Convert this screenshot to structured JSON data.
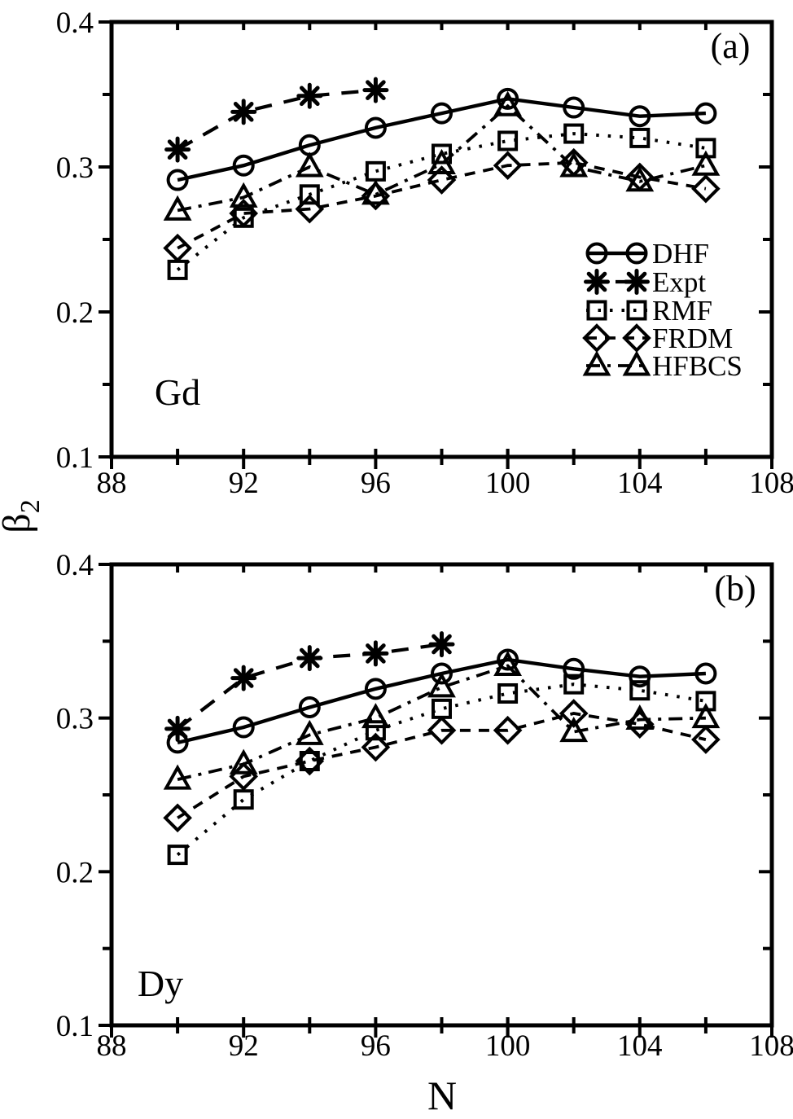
{
  "figure": {
    "background": "#ffffff",
    "foreground": "#000000",
    "x_axis_label": "N",
    "y_axis_label": "β",
    "y_axis_label_subscript": "2"
  },
  "legend": {
    "position": "center-right-of-top-panel",
    "entries": [
      "DHF",
      "Expt",
      "RMF",
      "FRDM",
      "HFBCS"
    ]
  },
  "chart_data": [
    {
      "type": "line",
      "panel_label": "(a)",
      "element_label": "Gd",
      "xlim": [
        88,
        108
      ],
      "ylim": [
        0.1,
        0.4
      ],
      "xticks_major": [
        88,
        92,
        96,
        100,
        104,
        108
      ],
      "xticks_minor": [
        90,
        94,
        98,
        100,
        102,
        106
      ],
      "xtick_labels": [
        "88",
        "92",
        "96",
        "100",
        "104",
        "108"
      ],
      "yticks_major": [
        0.1,
        0.2,
        0.3,
        0.4
      ],
      "yticks_minor": [
        0.15,
        0.25,
        0.35
      ],
      "ytick_labels": [
        "0.1",
        "0.2",
        "0.3",
        "0.4"
      ],
      "grid": false,
      "legend_visible": true,
      "series": [
        {
          "name": "DHF",
          "marker": "circle",
          "line_style": "solid",
          "x": [
            90,
            92,
            94,
            96,
            98,
            100,
            102,
            104,
            106
          ],
          "y": [
            0.291,
            0.301,
            0.315,
            0.327,
            0.337,
            0.347,
            0.341,
            0.335,
            0.337
          ]
        },
        {
          "name": "Expt",
          "marker": "asterisk",
          "line_style": "long-dash",
          "x": [
            90,
            92,
            94,
            96
          ],
          "y": [
            0.312,
            0.338,
            0.349,
            0.353
          ]
        },
        {
          "name": "RMF",
          "marker": "square",
          "line_style": "dotted",
          "x": [
            90,
            92,
            94,
            96,
            98,
            100,
            102,
            104,
            106
          ],
          "y": [
            0.229,
            0.265,
            0.281,
            0.297,
            0.309,
            0.318,
            0.323,
            0.32,
            0.313
          ]
        },
        {
          "name": "FRDM",
          "marker": "diamond",
          "line_style": "dash",
          "x": [
            90,
            92,
            94,
            96,
            98,
            100,
            102,
            104,
            106
          ],
          "y": [
            0.244,
            0.268,
            0.271,
            0.28,
            0.291,
            0.301,
            0.303,
            0.293,
            0.285
          ]
        },
        {
          "name": "HFBCS",
          "marker": "triangle",
          "line_style": "dash-dot",
          "x": [
            90,
            92,
            94,
            96,
            98,
            100,
            102,
            104,
            106
          ],
          "y": [
            0.27,
            0.279,
            0.3,
            0.281,
            0.302,
            0.342,
            0.3,
            0.29,
            0.301
          ]
        }
      ]
    },
    {
      "type": "line",
      "panel_label": "(b)",
      "element_label": "Dy",
      "xlim": [
        88,
        108
      ],
      "ylim": [
        0.1,
        0.4
      ],
      "xticks_major": [
        88,
        92,
        96,
        100,
        104,
        108
      ],
      "xticks_minor": [
        90,
        94,
        98,
        100,
        102,
        106
      ],
      "xtick_labels": [
        "88",
        "92",
        "96",
        "100",
        "104",
        "108"
      ],
      "yticks_major": [
        0.1,
        0.2,
        0.3,
        0.4
      ],
      "yticks_minor": [
        0.15,
        0.25,
        0.35
      ],
      "ytick_labels": [
        "0.1",
        "0.2",
        "0.3",
        "0.4"
      ],
      "grid": false,
      "legend_visible": false,
      "series": [
        {
          "name": "DHF",
          "marker": "circle",
          "line_style": "solid",
          "x": [
            90,
            92,
            94,
            96,
            98,
            100,
            102,
            104,
            106
          ],
          "y": [
            0.284,
            0.294,
            0.307,
            0.319,
            0.329,
            0.338,
            0.332,
            0.327,
            0.329
          ]
        },
        {
          "name": "Expt",
          "marker": "asterisk",
          "line_style": "long-dash",
          "x": [
            90,
            92,
            94,
            96,
            98
          ],
          "y": [
            0.293,
            0.326,
            0.339,
            0.342,
            0.348
          ]
        },
        {
          "name": "RMF",
          "marker": "square",
          "line_style": "dotted",
          "x": [
            90,
            92,
            94,
            96,
            98,
            100,
            102,
            104,
            106
          ],
          "y": [
            0.211,
            0.247,
            0.272,
            0.292,
            0.306,
            0.316,
            0.322,
            0.318,
            0.311
          ]
        },
        {
          "name": "FRDM",
          "marker": "diamond",
          "line_style": "dash",
          "x": [
            90,
            92,
            94,
            96,
            98,
            100,
            102,
            104,
            106
          ],
          "y": [
            0.235,
            0.262,
            0.272,
            0.281,
            0.292,
            0.292,
            0.303,
            0.296,
            0.286
          ]
        },
        {
          "name": "HFBCS",
          "marker": "triangle",
          "line_style": "dash-dot",
          "x": [
            90,
            92,
            94,
            96,
            98,
            100,
            102,
            104,
            106
          ],
          "y": [
            0.26,
            0.27,
            0.289,
            0.3,
            0.32,
            0.334,
            0.291,
            0.299,
            0.3
          ]
        }
      ]
    }
  ]
}
